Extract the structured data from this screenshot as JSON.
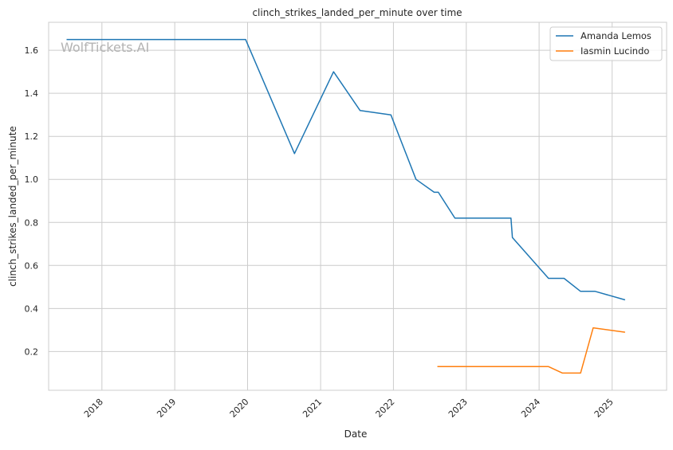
{
  "chart_data": {
    "type": "line",
    "title": "clinch_strikes_landed_per_minute over time",
    "xlabel": "Date",
    "ylabel": "clinch_strikes_landed_per_minute",
    "watermark": "WolfTickets.AI",
    "xlim": [
      "2017-04-09",
      "2025-10-01"
    ],
    "ylim": [
      0.02,
      1.73
    ],
    "x_ticks": [
      "2018",
      "2019",
      "2020",
      "2021",
      "2022",
      "2023",
      "2024",
      "2025"
    ],
    "y_ticks": [
      "0.2",
      "0.4",
      "0.6",
      "0.8",
      "1.0",
      "1.2",
      "1.4",
      "1.6"
    ],
    "grid": true,
    "legend_position": "top-right",
    "series": [
      {
        "name": "Amanda Lemos",
        "color": "#1f77b4",
        "points": [
          [
            "2017-07-08",
            1.65
          ],
          [
            "2019-12-22",
            1.65
          ],
          [
            "2020-08-23",
            1.12
          ],
          [
            "2021-03-07",
            1.5
          ],
          [
            "2021-07-18",
            1.32
          ],
          [
            "2021-12-19",
            1.3
          ],
          [
            "2022-04-24",
            1.0
          ],
          [
            "2022-07-24",
            0.94
          ],
          [
            "2022-08-14",
            0.94
          ],
          [
            "2022-11-05",
            0.82
          ],
          [
            "2023-08-13",
            0.82
          ],
          [
            "2023-08-20",
            0.73
          ],
          [
            "2024-02-17",
            0.54
          ],
          [
            "2024-05-05",
            0.54
          ],
          [
            "2024-07-26",
            0.48
          ],
          [
            "2024-10-06",
            0.48
          ],
          [
            "2025-03-07",
            0.44
          ]
        ]
      },
      {
        "name": "Iasmin Lucindo",
        "color": "#ff7f0e",
        "points": [
          [
            "2022-08-09",
            0.13
          ],
          [
            "2024-02-17",
            0.13
          ],
          [
            "2024-04-27",
            0.1
          ],
          [
            "2024-07-27",
            0.1
          ],
          [
            "2024-09-28",
            0.31
          ],
          [
            "2025-03-07",
            0.29
          ]
        ]
      }
    ]
  }
}
